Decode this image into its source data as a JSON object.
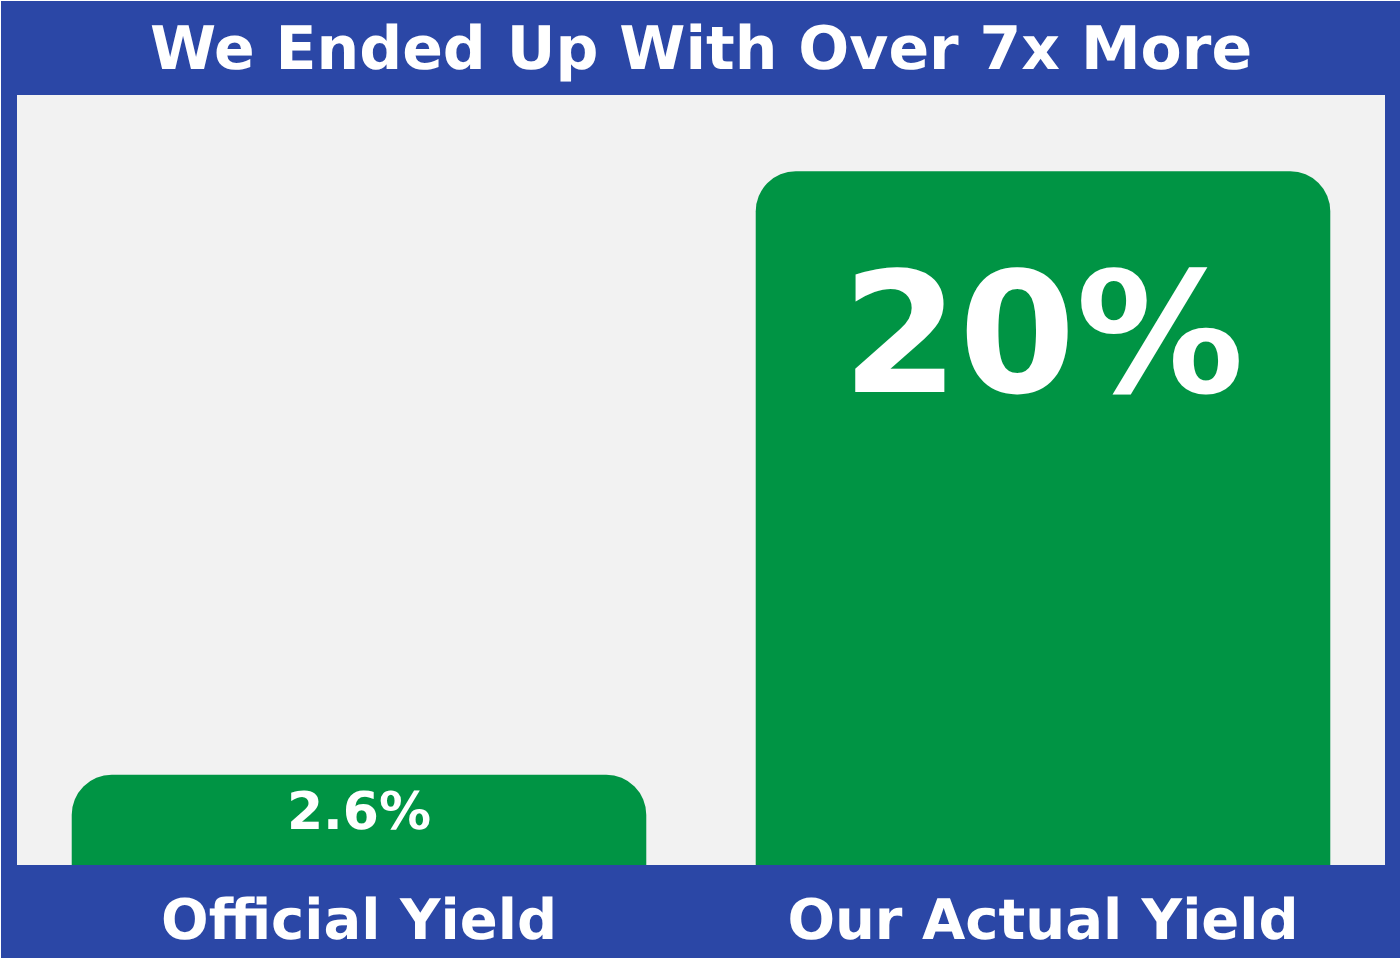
{
  "chart_data": {
    "type": "bar",
    "title": "We Ended Up With Over 7x More",
    "categories": [
      "Official Yield",
      "Our Actual Yield"
    ],
    "values": [
      2.6,
      20
    ],
    "color": "#009444",
    "value_labels": [
      "2.6%",
      "20%"
    ]
  }
}
